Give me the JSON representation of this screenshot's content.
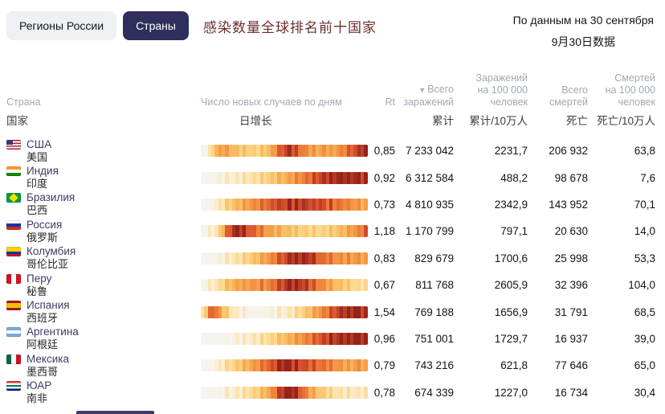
{
  "tabs": [
    {
      "label": "Регионы России",
      "active": false
    },
    {
      "label": "Страны",
      "active": true
    }
  ],
  "title_zh": "感染数量全球排名前十国家",
  "updated": {
    "ru": "По данным на 30 сентября",
    "zh": "9月30日数据"
  },
  "colors": {
    "tab_active_bg": "#2f2e5c",
    "tab_inactive_bg": "#eef0f3",
    "title_zh": "#6b2f2b",
    "header_ru": "#9fa9b3",
    "header_zh": "#3f3f3f",
    "heatmap_palette": [
      [
        0.0,
        "#f4f4f1"
      ],
      [
        0.08,
        "#fbeed3"
      ],
      [
        0.25,
        "#fcd98d"
      ],
      [
        0.45,
        "#f9b65a"
      ],
      [
        0.65,
        "#f08a3c"
      ],
      [
        0.82,
        "#dd5630"
      ],
      [
        1.0,
        "#94231a"
      ]
    ]
  },
  "table": {
    "headers": {
      "country_ru": "Страна",
      "country_zh": "国家",
      "daily_ru": "Число новых случаев по дням",
      "daily_zh": "日增长",
      "rt": "Rt",
      "sort_icon": "▼",
      "infections_ru_1": "Всего",
      "infections_ru_2": "заражений",
      "infections_zh": "累计",
      "inf100k_ru_1": "Заражений",
      "inf100k_ru_2": "на 100 000",
      "inf100k_ru_3": "человек",
      "inf100k_zh": "累计/10万人",
      "deaths_ru_1": "Всего",
      "deaths_ru_2": "смертей",
      "deaths_zh": "死亡",
      "deaths100k_ru_1": "Смертей",
      "deaths100k_ru_2": "на 100 000",
      "deaths100k_ru_3": "человек",
      "deaths100k_zh": "死亡/10万人"
    },
    "rows": [
      {
        "name_ru": "США",
        "name_zh": "美国",
        "flag": {
          "dir": "h",
          "stripes": [
            "#b22234",
            "#ffffff",
            "#b22234",
            "#ffffff",
            "#b22234",
            "#ffffff",
            "#b22234"
          ],
          "canton": "#3c3b6e"
        },
        "rt": "0,85",
        "infections": "7 233 042",
        "inf_per_100k": "2231,7",
        "deaths": "206 932",
        "deaths_per_100k": "63,8",
        "spark": [
          0.02,
          0.04,
          0.1,
          0.3,
          0.45,
          0.52,
          0.55,
          0.5,
          0.46,
          0.42,
          0.38,
          0.35,
          0.33,
          0.34,
          0.3,
          0.28,
          0.3,
          0.33,
          0.36,
          0.42,
          0.52,
          0.62,
          0.72,
          0.82,
          0.88,
          0.92,
          0.86,
          0.8,
          0.74,
          0.68,
          0.62,
          0.58,
          0.54,
          0.5,
          0.54,
          0.58,
          0.54,
          0.5,
          0.54,
          0.6,
          0.64,
          0.7,
          0.74,
          0.8,
          0.85,
          0.9,
          0.95,
          1.0
        ]
      },
      {
        "name_ru": "Индия",
        "name_zh": "印度",
        "flag": {
          "dir": "h",
          "stripes": [
            "#ff9933",
            "#ffffff",
            "#138808"
          ]
        },
        "rt": "0,92",
        "infections": "6 312 584",
        "inf_per_100k": "488,2",
        "deaths": "98 678",
        "deaths_per_100k": "7,6",
        "spark": [
          0.0,
          0.0,
          0.01,
          0.02,
          0.03,
          0.04,
          0.05,
          0.06,
          0.08,
          0.09,
          0.1,
          0.12,
          0.14,
          0.16,
          0.18,
          0.2,
          0.22,
          0.25,
          0.28,
          0.31,
          0.34,
          0.37,
          0.4,
          0.44,
          0.48,
          0.52,
          0.56,
          0.6,
          0.64,
          0.68,
          0.72,
          0.76,
          0.8,
          0.84,
          0.87,
          0.9,
          0.92,
          0.94,
          0.96,
          0.98,
          1.0,
          1.0,
          0.98,
          0.96,
          0.97,
          0.95,
          0.92,
          0.9
        ]
      },
      {
        "name_ru": "Бразилия",
        "name_zh": "巴西",
        "flag": {
          "dir": "h",
          "stripes": [
            "#009c3b"
          ],
          "diamond": "#ffdf00"
        },
        "rt": "0,73",
        "infections": "4 810 935",
        "inf_per_100k": "2342,9",
        "deaths": "143 952",
        "deaths_per_100k": "70,1",
        "spark": [
          0.0,
          0.01,
          0.02,
          0.05,
          0.1,
          0.15,
          0.2,
          0.26,
          0.32,
          0.38,
          0.42,
          0.46,
          0.5,
          0.55,
          0.6,
          0.62,
          0.66,
          0.7,
          0.73,
          0.76,
          0.8,
          0.86,
          0.8,
          0.9,
          0.84,
          0.95,
          0.88,
          1.0,
          0.9,
          0.95,
          0.85,
          0.9,
          0.8,
          0.86,
          0.9,
          0.8,
          0.76,
          0.8,
          0.72,
          0.76,
          0.66,
          0.7,
          0.6,
          0.64,
          0.56,
          0.6,
          0.5,
          0.46
        ]
      },
      {
        "name_ru": "Россия",
        "name_zh": "俄罗斯",
        "flag": {
          "dir": "h",
          "stripes": [
            "#ffffff",
            "#0039a6",
            "#d52b1e"
          ]
        },
        "rt": "1,18",
        "infections": "1 170 799",
        "inf_per_100k": "797,1",
        "deaths": "20 630",
        "deaths_per_100k": "14,0",
        "spark": [
          0.01,
          0.02,
          0.04,
          0.08,
          0.16,
          0.3,
          0.5,
          0.7,
          0.85,
          0.95,
          1.0,
          0.95,
          0.9,
          0.85,
          0.8,
          0.76,
          0.72,
          0.66,
          0.6,
          0.56,
          0.52,
          0.48,
          0.45,
          0.42,
          0.4,
          0.38,
          0.36,
          0.34,
          0.32,
          0.31,
          0.3,
          0.29,
          0.28,
          0.28,
          0.27,
          0.28,
          0.3,
          0.32,
          0.34,
          0.38,
          0.42,
          0.46,
          0.5,
          0.55,
          0.6,
          0.65,
          0.7,
          0.76
        ]
      },
      {
        "name_ru": "Колумбия",
        "name_zh": "哥伦比亚",
        "flag": {
          "dir": "h",
          "stripes": [
            "#fcd116",
            "#fcd116",
            "#003893",
            "#ce1126"
          ]
        },
        "rt": "0,83",
        "infections": "829 679",
        "inf_per_100k": "1700,6",
        "deaths": "25 998",
        "deaths_per_100k": "53,3",
        "spark": [
          0.0,
          0.0,
          0.01,
          0.02,
          0.03,
          0.05,
          0.07,
          0.09,
          0.12,
          0.14,
          0.17,
          0.2,
          0.24,
          0.28,
          0.33,
          0.38,
          0.43,
          0.48,
          0.53,
          0.58,
          0.64,
          0.7,
          0.76,
          0.82,
          0.86,
          0.92,
          0.96,
          1.0,
          0.94,
          1.0,
          0.9,
          0.95,
          0.86,
          0.8,
          0.76,
          0.7,
          0.72,
          0.68,
          0.64,
          0.6,
          0.62,
          0.58,
          0.6,
          0.55,
          0.58,
          0.6,
          0.54,
          0.5
        ]
      },
      {
        "name_ru": "Перу",
        "name_zh": "秘鲁",
        "flag": {
          "dir": "v",
          "stripes": [
            "#d91023",
            "#ffffff",
            "#d91023"
          ]
        },
        "rt": "0,67",
        "infections": "811 768",
        "inf_per_100k": "2605,9",
        "deaths": "32 396",
        "deaths_per_100k": "104,0",
        "spark": [
          0.01,
          0.03,
          0.06,
          0.1,
          0.16,
          0.22,
          0.3,
          0.36,
          0.4,
          0.46,
          0.5,
          0.55,
          0.5,
          0.56,
          0.6,
          0.55,
          0.6,
          0.66,
          0.6,
          0.66,
          0.7,
          0.76,
          0.8,
          0.86,
          0.92,
          1.0,
          0.94,
          0.9,
          0.95,
          0.86,
          0.9,
          0.8,
          0.76,
          0.7,
          0.66,
          0.6,
          0.55,
          0.5,
          0.46,
          0.4,
          0.38,
          0.34,
          0.3,
          0.28,
          0.25,
          0.22,
          0.2,
          0.18
        ]
      },
      {
        "name_ru": "Испания",
        "name_zh": "西班牙",
        "flag": {
          "dir": "h",
          "stripes": [
            "#aa151b",
            "#f1bf00",
            "#f1bf00",
            "#aa151b"
          ]
        },
        "rt": "1,54",
        "infections": "769 188",
        "inf_per_100k": "1656,9",
        "deaths": "31 791",
        "deaths_per_100k": "68,5",
        "spark": [
          0.12,
          0.4,
          0.66,
          0.8,
          0.7,
          0.55,
          0.4,
          0.28,
          0.18,
          0.12,
          0.08,
          0.05,
          0.04,
          0.03,
          0.02,
          0.02,
          0.02,
          0.02,
          0.03,
          0.03,
          0.04,
          0.05,
          0.06,
          0.08,
          0.1,
          0.13,
          0.16,
          0.2,
          0.25,
          0.3,
          0.36,
          0.42,
          0.48,
          0.54,
          0.6,
          0.66,
          0.72,
          0.78,
          0.84,
          0.88,
          0.92,
          0.96,
          1.0,
          0.95,
          1.0,
          0.96,
          0.92,
          0.88
        ]
      },
      {
        "name_ru": "Аргентина",
        "name_zh": "阿根廷",
        "flag": {
          "dir": "h",
          "stripes": [
            "#74acdf",
            "#ffffff",
            "#74acdf"
          ]
        },
        "rt": "0,96",
        "infections": "751 001",
        "inf_per_100k": "1729,7",
        "deaths": "16 937",
        "deaths_per_100k": "39,0",
        "spark": [
          0.0,
          0.0,
          0.0,
          0.01,
          0.01,
          0.02,
          0.02,
          0.03,
          0.04,
          0.05,
          0.06,
          0.07,
          0.08,
          0.1,
          0.12,
          0.14,
          0.16,
          0.18,
          0.21,
          0.24,
          0.27,
          0.3,
          0.34,
          0.38,
          0.42,
          0.46,
          0.5,
          0.54,
          0.58,
          0.62,
          0.66,
          0.7,
          0.74,
          0.78,
          0.82,
          0.85,
          0.88,
          0.9,
          0.92,
          0.94,
          0.96,
          0.98,
          1.0,
          0.96,
          1.0,
          0.98,
          0.96,
          0.94
        ]
      },
      {
        "name_ru": "Мексика",
        "name_zh": "墨西哥",
        "flag": {
          "dir": "v",
          "stripes": [
            "#006847",
            "#ffffff",
            "#ce1126"
          ]
        },
        "rt": "0,79",
        "infections": "743 216",
        "inf_per_100k": "621,8",
        "deaths": "77 646",
        "deaths_per_100k": "65,0",
        "spark": [
          0.0,
          0.01,
          0.02,
          0.04,
          0.07,
          0.1,
          0.14,
          0.18,
          0.22,
          0.27,
          0.32,
          0.37,
          0.42,
          0.47,
          0.52,
          0.57,
          0.62,
          0.67,
          0.72,
          0.77,
          0.82,
          0.87,
          0.92,
          0.96,
          1.0,
          0.94,
          0.9,
          0.92,
          0.88,
          0.85,
          0.82,
          0.8,
          0.78,
          0.75,
          0.72,
          0.7,
          0.68,
          0.65,
          0.62,
          0.6,
          0.58,
          0.55,
          0.52,
          0.5,
          0.56,
          0.6,
          0.52,
          0.46
        ]
      },
      {
        "name_ru": "ЮАР",
        "name_zh": "南非",
        "flag": {
          "dir": "h",
          "stripes": [
            "#de3831",
            "#ffffff",
            "#007a4d",
            "#ffffff",
            "#001489"
          ]
        },
        "rt": "0,78",
        "infections": "674 339",
        "inf_per_100k": "1227,0",
        "deaths": "16 734",
        "deaths_per_100k": "30,4",
        "spark": [
          0.0,
          0.0,
          0.01,
          0.01,
          0.02,
          0.03,
          0.04,
          0.05,
          0.07,
          0.09,
          0.11,
          0.13,
          0.16,
          0.2,
          0.24,
          0.28,
          0.33,
          0.38,
          0.44,
          0.52,
          0.62,
          0.72,
          0.82,
          0.92,
          1.0,
          0.95,
          1.0,
          0.9,
          0.84,
          0.74,
          0.64,
          0.54,
          0.46,
          0.4,
          0.35,
          0.3,
          0.26,
          0.23,
          0.2,
          0.18,
          0.17,
          0.16,
          0.15,
          0.14,
          0.13,
          0.12,
          0.12,
          0.11
        ]
      }
    ]
  }
}
